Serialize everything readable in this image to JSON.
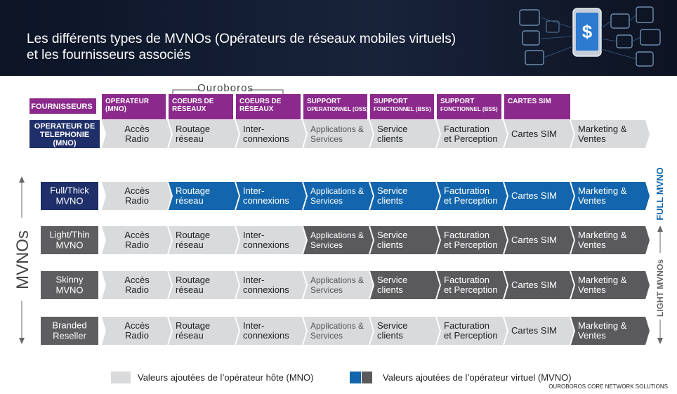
{
  "title_line1": "Les différents types de MVNOs (Opérateurs de réseaux mobiles virtuels)",
  "title_line2": "et les fournisseurs associés",
  "ouroboros_label": "Ouroboros",
  "header": {
    "fournisseurs": "FOURNISSEURS",
    "columns": [
      [
        "OPERATEUR",
        "(MNO)"
      ],
      [
        "COEURS DE",
        "RÉSEAUX"
      ],
      [
        "COEURS DE",
        "RÉSEAUX"
      ],
      [
        "SUPPORT",
        "OPERATIONNEL (OSS)"
      ],
      [
        "SUPPORT",
        "FONCTIONNEL (BSS)"
      ],
      [
        "SUPPORT",
        "FONCTIONNEL (BSS)"
      ],
      [
        "CARTES SIM"
      ]
    ]
  },
  "mno_row_label": [
    "OPERATEUR DE",
    "TELEPHONIE",
    "(MNO)"
  ],
  "segments": [
    [
      "Accès",
      "Radio"
    ],
    [
      "Routage",
      "réseau"
    ],
    [
      "Inter-",
      "connexions"
    ],
    [
      "Applications &",
      "Services"
    ],
    [
      "Service",
      "clients"
    ],
    [
      "Facturation",
      "et Perception"
    ],
    [
      "Cartes SIM"
    ],
    [
      "Marketing &",
      "Ventes"
    ]
  ],
  "rows": [
    {
      "label": [
        "Full/Thick",
        "MVNO"
      ],
      "style": [
        "g",
        "b",
        "b",
        "b",
        "b",
        "b",
        "b",
        "b"
      ]
    },
    {
      "label": [
        "Light/Thin",
        "MVNO"
      ],
      "style": [
        "g",
        "g",
        "g",
        "d",
        "d",
        "d",
        "d",
        "d"
      ]
    },
    {
      "label": [
        "Skinny",
        "MVNO"
      ],
      "style": [
        "g",
        "g",
        "g",
        "g",
        "d",
        "d",
        "d",
        "d"
      ]
    },
    {
      "label": [
        "Branded",
        "Reseller"
      ],
      "style": [
        "g",
        "g",
        "g",
        "g",
        "g",
        "g",
        "g",
        "d"
      ]
    }
  ],
  "side_label_left": "MVNOs",
  "side_label_full": "FULL MVNO",
  "side_label_light": "LIGHT MVNOs",
  "legend": {
    "host": "Valeurs ajoutées de l’opérateur hôte (MNO)",
    "virtual": "Valeurs ajoutées de l’opérateur virtuel (MVNO)"
  },
  "credit": "OUROBOROS CORE NETWORK SOLUTIONS",
  "colors": {
    "banner": "#101a30",
    "purple": "#8b2a8c",
    "navy": "#1f2f6a",
    "blue": "#1366ad",
    "dark": "#5a5a5c",
    "gray": "#d9dadc",
    "label_gray": "#5e5e60"
  }
}
